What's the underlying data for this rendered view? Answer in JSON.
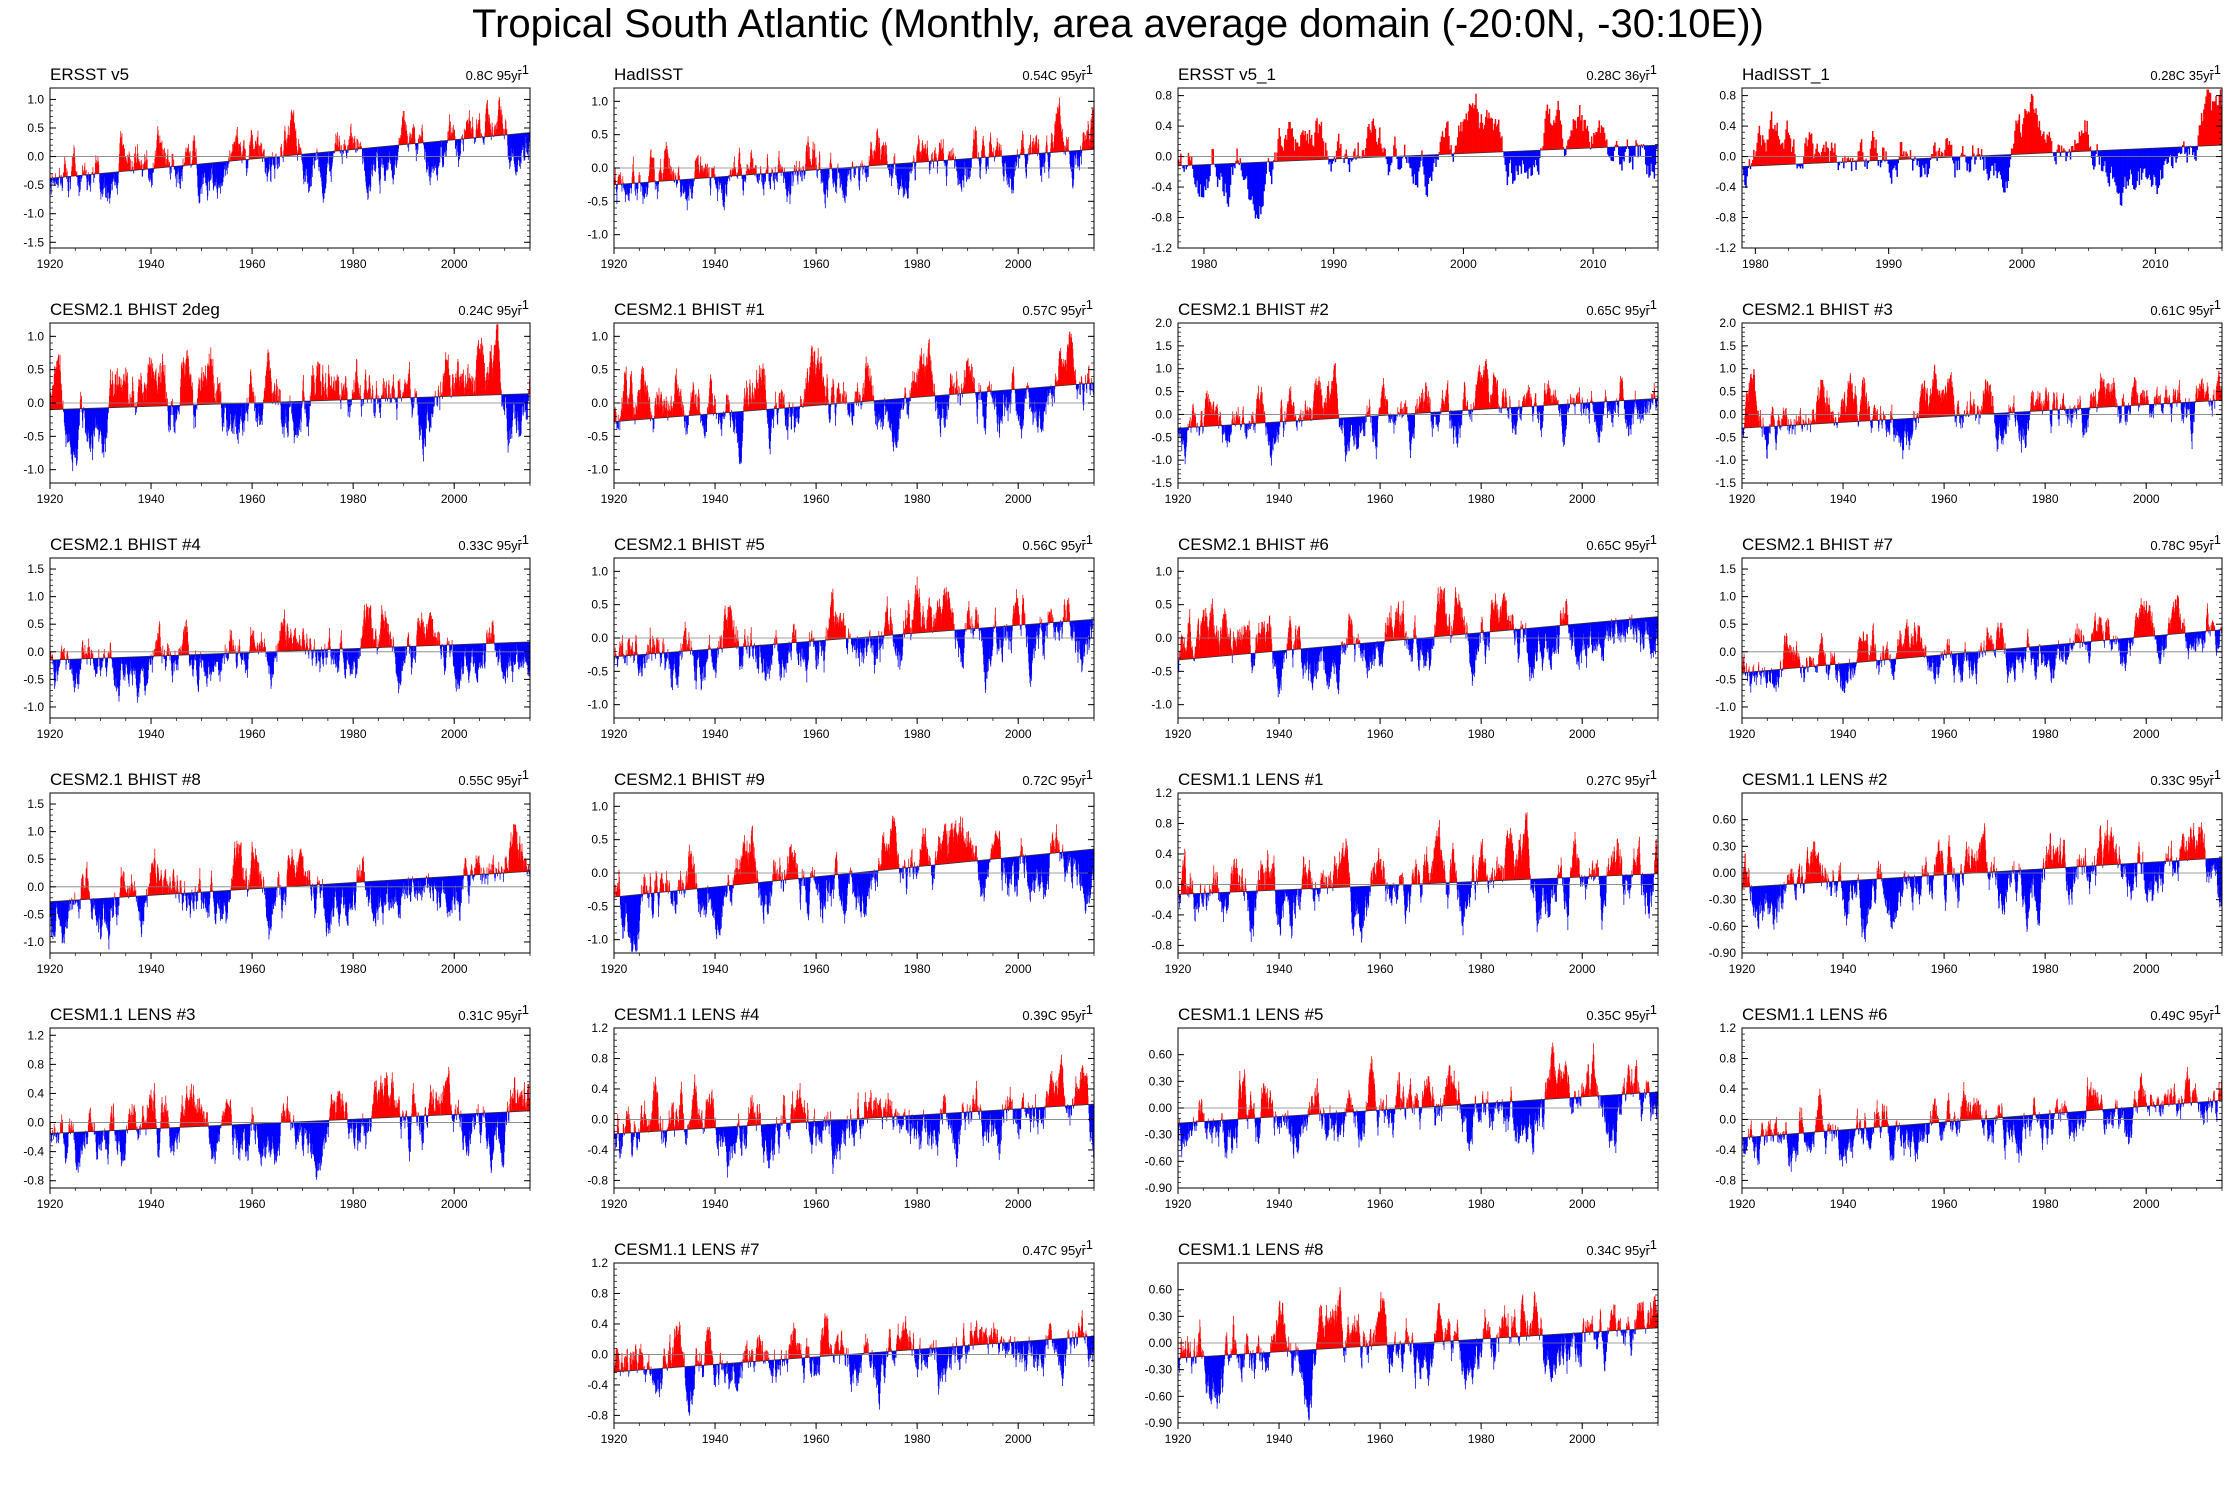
{
  "title": "Tropical South Atlantic (Monthly, area average domain (-20:0N, -30:10E))",
  "colors": {
    "positive": "#ff0000",
    "negative": "#0000ff",
    "zero_line": "#808080"
  },
  "chart_data": [
    {
      "type": "bar",
      "name": "ERSST v5",
      "trend_value": "0.8C 95yr",
      "trend_exp": "-1",
      "x_range": [
        1920,
        2015
      ],
      "xticks": [
        1920,
        1940,
        1960,
        1980,
        2000
      ],
      "ylim": [
        -1.6,
        1.2
      ],
      "yticks": [
        "1.0",
        "0.5",
        "0.0",
        "-0.5",
        "-1.0",
        "-1.5"
      ],
      "ytick_values": [
        1.0,
        0.5,
        0.0,
        -0.5,
        -1.0,
        -1.5
      ],
      "series": {
        "trend_start": -0.38,
        "trend_end": 0.42,
        "amplitude": 0.45,
        "seed": 11
      }
    },
    {
      "type": "bar",
      "name": "HadISST",
      "trend_value": "0.54C 95yr",
      "trend_exp": "-1",
      "x_range": [
        1920,
        2015
      ],
      "xticks": [
        1920,
        1940,
        1960,
        1980,
        2000
      ],
      "ylim": [
        -1.2,
        1.2
      ],
      "yticks": [
        "1.0",
        "0.5",
        "0.0",
        "-0.5",
        "-1.0"
      ],
      "ytick_values": [
        1.0,
        0.5,
        0.0,
        -0.5,
        -1.0
      ],
      "series": {
        "trend_start": -0.25,
        "trend_end": 0.28,
        "amplitude": 0.4,
        "seed": 12
      }
    },
    {
      "type": "bar",
      "name": "ERSST v5_1",
      "trend_value": "0.28C 36yr",
      "trend_exp": "-1",
      "x_range": [
        1978,
        2015
      ],
      "xticks": [
        1980,
        1990,
        2000,
        2010
      ],
      "ylim": [
        -1.2,
        0.9
      ],
      "yticks": [
        "0.8",
        "0.4",
        "0.0",
        "-0.4",
        "-0.8",
        "-1.2"
      ],
      "ytick_values": [
        0.8,
        0.4,
        0.0,
        -0.4,
        -0.8,
        -1.2
      ],
      "series": {
        "trend_start": -0.12,
        "trend_end": 0.15,
        "amplitude": 0.42,
        "seed": 13
      }
    },
    {
      "type": "bar",
      "name": "HadISST_1",
      "trend_value": "0.28C 35yr",
      "trend_exp": "-1",
      "x_range": [
        1979,
        2015
      ],
      "xticks": [
        1980,
        1990,
        2000,
        2010
      ],
      "ylim": [
        -1.2,
        0.9
      ],
      "yticks": [
        "0.8",
        "0.4",
        "0.0",
        "-0.4",
        "-0.8",
        "-1.2"
      ],
      "ytick_values": [
        0.8,
        0.4,
        0.0,
        -0.4,
        -0.8,
        -1.2
      ],
      "series": {
        "trend_start": -0.13,
        "trend_end": 0.15,
        "amplitude": 0.4,
        "seed": 14
      }
    },
    {
      "type": "bar",
      "name": "CESM2.1 BHIST 2deg",
      "trend_value": "0.24C 95yr",
      "trend_exp": "-1",
      "x_range": [
        1920,
        2015
      ],
      "xticks": [
        1920,
        1940,
        1960,
        1980,
        2000
      ],
      "ylim": [
        -1.2,
        1.2
      ],
      "yticks": [
        "1.0",
        "0.5",
        "0.0",
        "-0.5",
        "-1.0"
      ],
      "ytick_values": [
        1.0,
        0.5,
        0.0,
        -0.5,
        -1.0
      ],
      "series": {
        "trend_start": -0.1,
        "trend_end": 0.14,
        "amplitude": 0.5,
        "seed": 21
      }
    },
    {
      "type": "bar",
      "name": "CESM2.1 BHIST #1",
      "trend_value": "0.57C 95yr",
      "trend_exp": "-1",
      "x_range": [
        1920,
        2015
      ],
      "xticks": [
        1920,
        1940,
        1960,
        1980,
        2000
      ],
      "ylim": [
        -1.2,
        1.2
      ],
      "yticks": [
        "1.0",
        "0.5",
        "0.0",
        "-0.5",
        "-1.0"
      ],
      "ytick_values": [
        1.0,
        0.5,
        0.0,
        -0.5,
        -1.0
      ],
      "series": {
        "trend_start": -0.28,
        "trend_end": 0.3,
        "amplitude": 0.45,
        "seed": 22
      }
    },
    {
      "type": "bar",
      "name": "CESM2.1 BHIST #2",
      "trend_value": "0.65C 95yr",
      "trend_exp": "-1",
      "x_range": [
        1920,
        2015
      ],
      "xticks": [
        1920,
        1940,
        1960,
        1980,
        2000
      ],
      "ylim": [
        -1.5,
        2.0
      ],
      "yticks": [
        "2.0",
        "1.5",
        "1.0",
        "0.5",
        "0.0",
        "-0.5",
        "-1.0",
        "-1.5"
      ],
      "ytick_values": [
        2.0,
        1.5,
        1.0,
        0.5,
        0.0,
        -0.5,
        -1.0,
        -1.5
      ],
      "series": {
        "trend_start": -0.3,
        "trend_end": 0.35,
        "amplitude": 0.55,
        "seed": 23
      }
    },
    {
      "type": "bar",
      "name": "CESM2.1 BHIST #3",
      "trend_value": "0.61C 95yr",
      "trend_exp": "-1",
      "x_range": [
        1920,
        2015
      ],
      "xticks": [
        1920,
        1940,
        1960,
        1980,
        2000
      ],
      "ylim": [
        -1.5,
        2.0
      ],
      "yticks": [
        "2.0",
        "1.5",
        "1.0",
        "0.5",
        "0.0",
        "-0.5",
        "-1.0",
        "-1.5"
      ],
      "ytick_values": [
        2.0,
        1.5,
        1.0,
        0.5,
        0.0,
        -0.5,
        -1.0,
        -1.5
      ],
      "series": {
        "trend_start": -0.3,
        "trend_end": 0.31,
        "amplitude": 0.55,
        "seed": 24
      }
    },
    {
      "type": "bar",
      "name": "CESM2.1 BHIST #4",
      "trend_value": "0.33C 95yr",
      "trend_exp": "-1",
      "x_range": [
        1920,
        2015
      ],
      "xticks": [
        1920,
        1940,
        1960,
        1980,
        2000
      ],
      "ylim": [
        -1.2,
        1.7
      ],
      "yticks": [
        "1.5",
        "1.0",
        "0.5",
        "0.0",
        "-0.5",
        "-1.0"
      ],
      "ytick_values": [
        1.5,
        1.0,
        0.5,
        0.0,
        -0.5,
        -1.0
      ],
      "series": {
        "trend_start": -0.15,
        "trend_end": 0.18,
        "amplitude": 0.45,
        "seed": 31
      }
    },
    {
      "type": "bar",
      "name": "CESM2.1 BHIST #5",
      "trend_value": "0.56C 95yr",
      "trend_exp": "-1",
      "x_range": [
        1920,
        2015
      ],
      "xticks": [
        1920,
        1940,
        1960,
        1980,
        2000
      ],
      "ylim": [
        -1.2,
        1.2
      ],
      "yticks": [
        "1.0",
        "0.5",
        "0.0",
        "-0.5",
        "-1.0"
      ],
      "ytick_values": [
        1.0,
        0.5,
        0.0,
        -0.5,
        -1.0
      ],
      "series": {
        "trend_start": -0.28,
        "trend_end": 0.28,
        "amplitude": 0.45,
        "seed": 32
      }
    },
    {
      "type": "bar",
      "name": "CESM2.1 BHIST #6",
      "trend_value": "0.65C 95yr",
      "trend_exp": "-1",
      "x_range": [
        1920,
        2015
      ],
      "xticks": [
        1920,
        1940,
        1960,
        1980,
        2000
      ],
      "ylim": [
        -1.2,
        1.2
      ],
      "yticks": [
        "1.0",
        "0.5",
        "0.0",
        "-0.5",
        "-1.0"
      ],
      "ytick_values": [
        1.0,
        0.5,
        0.0,
        -0.5,
        -1.0
      ],
      "series": {
        "trend_start": -0.33,
        "trend_end": 0.32,
        "amplitude": 0.42,
        "seed": 33
      }
    },
    {
      "type": "bar",
      "name": "CESM2.1 BHIST #7",
      "trend_value": "0.78C 95yr",
      "trend_exp": "-1",
      "x_range": [
        1920,
        2015
      ],
      "xticks": [
        1920,
        1940,
        1960,
        1980,
        2000
      ],
      "ylim": [
        -1.2,
        1.7
      ],
      "yticks": [
        "1.5",
        "1.0",
        "0.5",
        "0.0",
        "-0.5",
        "-1.0"
      ],
      "ytick_values": [
        1.5,
        1.0,
        0.5,
        0.0,
        -0.5,
        -1.0
      ],
      "series": {
        "trend_start": -0.38,
        "trend_end": 0.4,
        "amplitude": 0.42,
        "seed": 34
      }
    },
    {
      "type": "bar",
      "name": "CESM2.1 BHIST #8",
      "trend_value": "0.55C 95yr",
      "trend_exp": "-1",
      "x_range": [
        1920,
        2015
      ],
      "xticks": [
        1920,
        1940,
        1960,
        1980,
        2000
      ],
      "ylim": [
        -1.2,
        1.7
      ],
      "yticks": [
        "1.5",
        "1.0",
        "0.5",
        "0.0",
        "-0.5",
        "-1.0"
      ],
      "ytick_values": [
        1.5,
        1.0,
        0.5,
        0.0,
        -0.5,
        -1.0
      ],
      "series": {
        "trend_start": -0.27,
        "trend_end": 0.28,
        "amplitude": 0.5,
        "seed": 41
      }
    },
    {
      "type": "bar",
      "name": "CESM2.1 BHIST #9",
      "trend_value": "0.72C 95yr",
      "trend_exp": "-1",
      "x_range": [
        1920,
        2015
      ],
      "xticks": [
        1920,
        1940,
        1960,
        1980,
        2000
      ],
      "ylim": [
        -1.2,
        1.2
      ],
      "yticks": [
        "1.0",
        "0.5",
        "0.0",
        "-0.5",
        "-1.0"
      ],
      "ytick_values": [
        1.0,
        0.5,
        0.0,
        -0.5,
        -1.0
      ],
      "series": {
        "trend_start": -0.36,
        "trend_end": 0.36,
        "amplitude": 0.45,
        "seed": 42
      }
    },
    {
      "type": "bar",
      "name": "CESM1.1 LENS #1",
      "trend_value": "0.27C 95yr",
      "trend_exp": "-1",
      "x_range": [
        1920,
        2015
      ],
      "xticks": [
        1920,
        1940,
        1960,
        1980,
        2000
      ],
      "ylim": [
        -0.9,
        1.2
      ],
      "yticks": [
        "1.2",
        "0.8",
        "0.4",
        "0.0",
        "-0.4",
        "-0.8"
      ],
      "ytick_values": [
        1.2,
        0.8,
        0.4,
        0.0,
        -0.4,
        -0.8
      ],
      "series": {
        "trend_start": -0.13,
        "trend_end": 0.14,
        "amplitude": 0.4,
        "seed": 43
      }
    },
    {
      "type": "bar",
      "name": "CESM1.1 LENS #2",
      "trend_value": "0.33C 95yr",
      "trend_exp": "-1",
      "x_range": [
        1920,
        2015
      ],
      "xticks": [
        1920,
        1940,
        1960,
        1980,
        2000
      ],
      "ylim": [
        -0.9,
        0.9
      ],
      "yticks": [
        "0.60",
        "0.30",
        "0.00",
        "-0.30",
        "-0.60",
        "-0.90"
      ],
      "ytick_values": [
        0.6,
        0.3,
        0.0,
        -0.3,
        -0.6,
        -0.9
      ],
      "series": {
        "trend_start": -0.16,
        "trend_end": 0.17,
        "amplitude": 0.32,
        "seed": 44
      }
    },
    {
      "type": "bar",
      "name": "CESM1.1 LENS #3",
      "trend_value": "0.31C 95yr",
      "trend_exp": "-1",
      "x_range": [
        1920,
        2015
      ],
      "xticks": [
        1920,
        1940,
        1960,
        1980,
        2000
      ],
      "ylim": [
        -0.9,
        1.3
      ],
      "yticks": [
        "1.2",
        "0.8",
        "0.4",
        "0.0",
        "-0.4",
        "-0.8"
      ],
      "ytick_values": [
        1.2,
        0.8,
        0.4,
        0.0,
        -0.4,
        -0.8
      ],
      "series": {
        "trend_start": -0.15,
        "trend_end": 0.16,
        "amplitude": 0.38,
        "seed": 51
      }
    },
    {
      "type": "bar",
      "name": "CESM1.1 LENS #4",
      "trend_value": "0.39C 95yr",
      "trend_exp": "-1",
      "x_range": [
        1920,
        2015
      ],
      "xticks": [
        1920,
        1940,
        1960,
        1980,
        2000
      ],
      "ylim": [
        -0.9,
        1.2
      ],
      "yticks": [
        "1.2",
        "0.8",
        "0.4",
        "0.0",
        "-0.4",
        "-0.8"
      ],
      "ytick_values": [
        1.2,
        0.8,
        0.4,
        0.0,
        -0.4,
        -0.8
      ],
      "series": {
        "trend_start": -0.19,
        "trend_end": 0.2,
        "amplitude": 0.4,
        "seed": 52
      }
    },
    {
      "type": "bar",
      "name": "CESM1.1 LENS #5",
      "trend_value": "0.35C 95yr",
      "trend_exp": "-1",
      "x_range": [
        1920,
        2015
      ],
      "xticks": [
        1920,
        1940,
        1960,
        1980,
        2000
      ],
      "ylim": [
        -0.9,
        0.9
      ],
      "yticks": [
        "0.60",
        "0.30",
        "0.00",
        "-0.30",
        "-0.60",
        "-0.90"
      ],
      "ytick_values": [
        0.6,
        0.3,
        0.0,
        -0.3,
        -0.6,
        -0.9
      ],
      "series": {
        "trend_start": -0.17,
        "trend_end": 0.18,
        "amplitude": 0.33,
        "seed": 53
      }
    },
    {
      "type": "bar",
      "name": "CESM1.1 LENS #6",
      "trend_value": "0.49C 95yr",
      "trend_exp": "-1",
      "x_range": [
        1920,
        2015
      ],
      "xticks": [
        1920,
        1940,
        1960,
        1980,
        2000
      ],
      "ylim": [
        -0.9,
        1.2
      ],
      "yticks": [
        "1.2",
        "0.8",
        "0.4",
        "0.0",
        "-0.4",
        "-0.8"
      ],
      "ytick_values": [
        1.2,
        0.8,
        0.4,
        0.0,
        -0.4,
        -0.8
      ],
      "series": {
        "trend_start": -0.24,
        "trend_end": 0.25,
        "amplitude": 0.35,
        "seed": 54
      }
    },
    {
      "type": "bar",
      "name": "CESM1.1 LENS #7",
      "trend_value": "0.47C 95yr",
      "trend_exp": "-1",
      "x_range": [
        1920,
        2015
      ],
      "xticks": [
        1920,
        1940,
        1960,
        1980,
        2000
      ],
      "ylim": [
        -0.9,
        1.2
      ],
      "yticks": [
        "1.2",
        "0.8",
        "0.4",
        "0.0",
        "-0.4",
        "-0.8"
      ],
      "ytick_values": [
        1.2,
        0.8,
        0.4,
        0.0,
        -0.4,
        -0.8
      ],
      "series": {
        "trend_start": -0.23,
        "trend_end": 0.24,
        "amplitude": 0.35,
        "seed": 61
      }
    },
    {
      "type": "bar",
      "name": "CESM1.1 LENS #8",
      "trend_value": "0.34C 95yr",
      "trend_exp": "-1",
      "x_range": [
        1920,
        2015
      ],
      "xticks": [
        1920,
        1940,
        1960,
        1980,
        2000
      ],
      "ylim": [
        -0.9,
        0.9
      ],
      "yticks": [
        "0.60",
        "0.30",
        "0.00",
        "-0.30",
        "-0.60",
        "-0.90"
      ],
      "ytick_values": [
        0.6,
        0.3,
        0.0,
        -0.3,
        -0.6,
        -0.9
      ],
      "series": {
        "trend_start": -0.17,
        "trend_end": 0.17,
        "amplitude": 0.33,
        "seed": 62
      }
    }
  ]
}
